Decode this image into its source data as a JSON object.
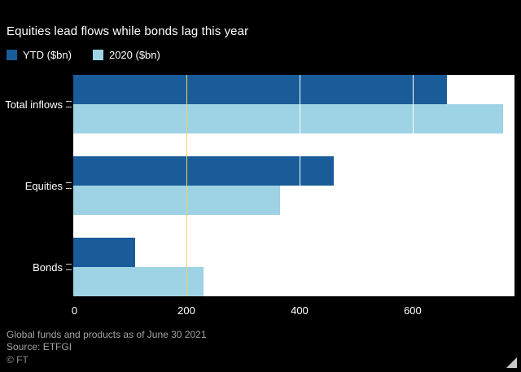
{
  "title": "Equities lead flows while bonds lag this year",
  "legend": [
    {
      "label": "YTD ($bn)",
      "color": "#1a5c99"
    },
    {
      "label": "2020 ($bn)",
      "color": "#9ed2e5"
    }
  ],
  "chart_data": {
    "type": "bar",
    "orientation": "horizontal",
    "title": "Equities lead flows while bonds lag this year",
    "categories": [
      "Total inflows",
      "Equities",
      "Bonds"
    ],
    "series": [
      {
        "name": "YTD ($bn)",
        "color": "#1a5c99",
        "values": [
          660,
          460,
          110
        ]
      },
      {
        "name": "2020 ($bn)",
        "color": "#9ed2e5",
        "values": [
          760,
          365,
          230
        ]
      }
    ],
    "xlim": [
      0,
      780
    ],
    "xticks": [
      0,
      200,
      400,
      600
    ],
    "gridlines": [
      {
        "x": 200,
        "color": "#f4d35e"
      },
      {
        "x": 400,
        "color": "#ffffff"
      },
      {
        "x": 600,
        "color": "#ffffff"
      }
    ],
    "plot_background": "#ffffff",
    "page_background": "#000000",
    "legend_position": "top-left",
    "grid": true
  },
  "footer": {
    "note": "Global funds and products as of June 30 2021",
    "source": "Source: ETFGI",
    "credit": "© FT"
  }
}
